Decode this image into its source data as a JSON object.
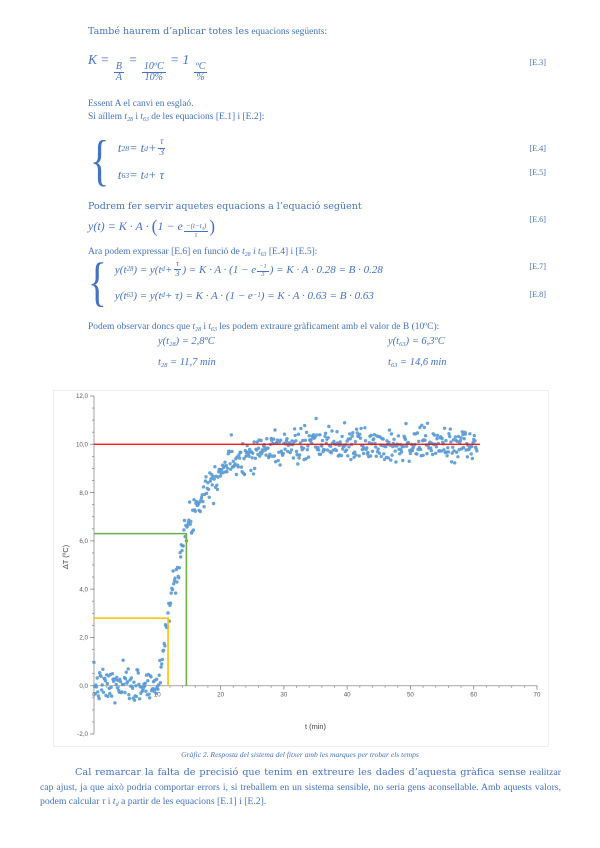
{
  "colors": {
    "text_blue": "#4472C4",
    "point_blue": "#5B9BD5",
    "marker_red": "#FF0000",
    "marker_green": "#70AD47",
    "marker_yellow": "#FFC000"
  },
  "intro": {
    "lead": "També haurem d’aplicar totes les",
    "rest": " equacions següents:"
  },
  "lines": {
    "essent": "Essent A el canvi en esglaó.",
    "aillem": [
      "Si aïllem ",
      {
        "i": [
          "t",
          {
            "sub": "28"
          }
        ]
      },
      " i ",
      {
        "i": [
          "t",
          {
            "sub": "63"
          }
        ]
      },
      " de les equacions [E.1] i [E.2]:"
    ],
    "podrem": "Podrem fer servir aquetes equacions a l’equació següent",
    "ara": [
      "Ara podem expressar [E.6] en funció de ",
      {
        "i": [
          "t",
          {
            "sub": "28"
          },
          " i t",
          {
            "sub": "63"
          }
        ]
      },
      " [E.4] i [E.5]:"
    ],
    "podem": [
      "Podem observar doncs que ",
      {
        "i": [
          "t",
          {
            "sub": "28"
          }
        ]
      },
      " i ",
      {
        "i": [
          "t",
          {
            "sub": "63"
          }
        ]
      },
      " les podem extraure gràficament amb el valor de B (10ºC):"
    ]
  },
  "glyphs": {
    "brace": "{"
  },
  "equations": {
    "e3": {
      "label": "[E.3]",
      "math": [
        "K = ",
        {
          "frac": [
            "B",
            "A"
          ]
        },
        " = ",
        {
          "frac": [
            "10ºC",
            "10%"
          ]
        },
        " = 1 ",
        {
          "frac": [
            "ºC",
            "%"
          ]
        }
      ]
    },
    "e4": {
      "label": "[E.4]",
      "math": [
        "t",
        {
          "sub": "28"
        },
        " = t",
        {
          "sub": "d"
        },
        " + ",
        {
          "frac": [
            "τ",
            "3"
          ]
        }
      ]
    },
    "e5": {
      "label": "[E.5]",
      "math": [
        "t",
        {
          "sub": "63"
        },
        " = t",
        {
          "sub": "d"
        },
        " +  τ"
      ]
    },
    "e6": {
      "label": "[E.6]",
      "math": [
        "y(t) = K · A · ",
        {
          "big": "("
        },
        "1 − e",
        {
          "sup": [
            {
              "frac": [
                [
                  "−(t−t",
                  {
                    "sub": "d"
                  },
                  ")"
                ],
                "τ"
              ]
            }
          ]
        },
        {
          "big": ")"
        }
      ]
    },
    "e7": {
      "label": "[E.7]",
      "math": [
        "y(t",
        {
          "sub": "28"
        },
        ") = y(t",
        {
          "sub": "d"
        },
        " + ",
        {
          "frac": [
            "τ",
            "3"
          ]
        },
        ") = K · A · (1 − e",
        {
          "sup": [
            {
              "frac": [
                "−1",
                "3"
              ]
            }
          ]
        },
        ") = K · A · 0.28 = B · 0.28"
      ]
    },
    "e8": {
      "label": "[E.8]",
      "math": [
        "y(t",
        {
          "sub": "63"
        },
        ") = y(t",
        {
          "sub": "d"
        },
        " + τ) = K · A · (1 − e",
        {
          "sup": "−1"
        },
        ") = K · A · 0.63 = B · 0.63"
      ]
    }
  },
  "values": {
    "v1": [
      "y(t",
      {
        "sub": "28"
      },
      ") = 2,8ºC"
    ],
    "v2": [
      "y(t",
      {
        "sub": "63"
      },
      ") = 6,3ºC"
    ],
    "v3": [
      "t",
      {
        "sub": "28"
      },
      " = 11,7 min"
    ],
    "v4": [
      "t",
      {
        "sub": "63"
      },
      " = 14,6 min"
    ]
  },
  "caption": "Gràfic 2. Resposta del sistema del fitxer amb les marques per trobar els temps",
  "closing": {
    "segments": [
      {
        "b": "Cal remarcar la falta de precisió que tenim en extreure les dades d’aquesta gràfica sense"
      },
      " realitzar cap ajust, ja que això podria comportar errors i, si treballem en un sistema sensible, no seria gens aconsellable. Amb aquests valors, podem calcular ",
      {
        "i": "τ"
      },
      " i ",
      {
        "i": [
          "t",
          {
            "sub": "d"
          }
        ]
      },
      " a partir de les equacions [E.1] i [E.2]."
    ]
  },
  "chart_data": {
    "type": "scatter",
    "xlabel": "t (min)",
    "ylabel": "ΔT (ºC)",
    "xlim": [
      0,
      70
    ],
    "ylim": [
      -2,
      12
    ],
    "x_ticks": [
      0,
      10,
      20,
      30,
      40,
      50,
      60,
      70
    ],
    "x_tick_labels": [
      "0",
      "10",
      "20",
      "30",
      "40",
      "50",
      "60",
      "70"
    ],
    "x_minor_step": 2,
    "y_ticks": [
      12,
      10,
      8,
      6,
      4,
      2,
      0,
      -2
    ],
    "y_tick_labels": [
      "12,0",
      "10,0",
      "8,0",
      "6,0",
      "4,0",
      "2,0",
      "0,0",
      "-2,0"
    ],
    "y_minor_step": 0.5,
    "grid": false,
    "legend": false,
    "point_color": "#5B9BD5",
    "axis_color": "#8c8c8c",
    "tick_label_color": "#595959",
    "series_model": {
      "kind": "first-order step response with noise",
      "baseline": 0,
      "B": 10,
      "t_d": 10.2,
      "tau": 4.35,
      "t_start": 0,
      "t_end": 60.5,
      "dt": 0.1,
      "noise_sd": 0.35
    },
    "markers": {
      "steady_state": {
        "meaning": "B (10ºC)",
        "y": 10,
        "x_start": 0,
        "x_end": 61,
        "color": "#FF0000"
      },
      "t63": {
        "meaning": "y(t63)=6,3ºC a t63=14,6 min",
        "y": 6.3,
        "x": 14.6,
        "color": "#70AD47"
      },
      "t28": {
        "meaning": "y(t28)=2,8ºC a t28=11,7 min",
        "y": 2.8,
        "x": 11.7,
        "color": "#FFC000"
      }
    }
  }
}
